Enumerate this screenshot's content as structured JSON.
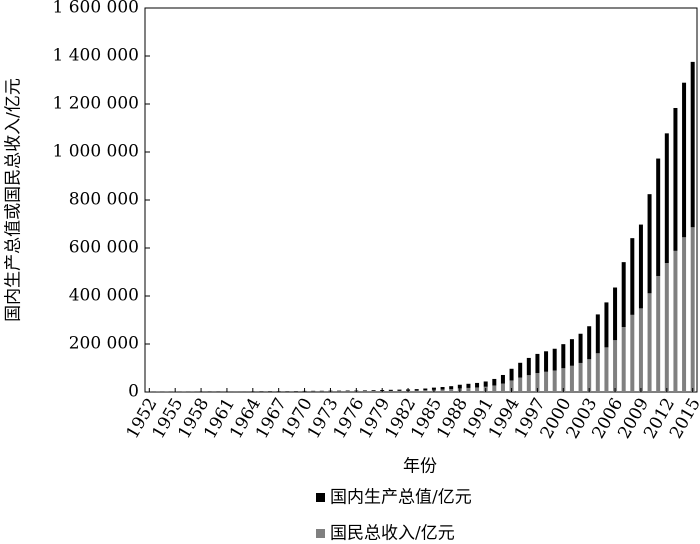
{
  "chart_data": {
    "type": "stacked_bar",
    "x_label": "年份",
    "y_label": "国内生产总值或国民总收入/亿元",
    "categories": [
      "1952",
      null,
      null,
      "1955",
      null,
      null,
      "1958",
      null,
      null,
      "1961",
      null,
      null,
      "1964",
      null,
      null,
      "1967",
      null,
      null,
      "1970",
      null,
      null,
      "1973",
      null,
      null,
      "1976",
      null,
      null,
      "1979",
      null,
      null,
      "1982",
      null,
      null,
      "1985",
      null,
      null,
      "1988",
      null,
      null,
      "1991",
      null,
      null,
      "1994",
      null,
      null,
      "1997",
      null,
      null,
      "2000",
      null,
      null,
      "2003",
      null,
      null,
      "2006",
      null,
      null,
      "2009",
      null,
      null,
      "2012",
      null,
      null,
      "2015"
    ],
    "series": [
      {
        "name": "国内生产总值/亿元",
        "color": "#000000",
        "values": [
          679,
          824,
          860,
          912,
          1031,
          1071,
          1312,
          1448,
          1470,
          1232,
          1162,
          1248,
          1470,
          1734,
          1889,
          1794,
          1744,
          1962,
          2280,
          2457,
          2552,
          2756,
          2828,
          3040,
          2989,
          3250,
          3679,
          4101,
          4588,
          4936,
          5373,
          6021,
          7279,
          9099,
          10376,
          12175,
          15180,
          17180,
          18873,
          22006,
          27195,
          35673,
          48638,
          61340,
          71814,
          79715,
          85196,
          90564,
          100280,
          110863,
          121717,
          137422,
          161840,
          187319,
          219439,
          270232,
          319516,
          349081,
          413030,
          489301,
          540367,
          595244,
          643974,
          689052
        ]
      },
      {
        "name": "国民总收入/亿元",
        "color": "#808080",
        "values": [
          679,
          824,
          860,
          912,
          1031,
          1071,
          1312,
          1448,
          1470,
          1232,
          1162,
          1248,
          1470,
          1734,
          1889,
          1794,
          1744,
          1962,
          2280,
          2457,
          2552,
          2756,
          2828,
          3040,
          2989,
          3250,
          3679,
          4101,
          4588,
          4891,
          5330,
          5986,
          7243,
          9123,
          10376,
          12059,
          15037,
          17000,
          18923,
          21826,
          27208,
          35260,
          48108,
          60357,
          70142,
          78973,
          84402,
          89677,
          99066,
          109276,
          121002,
          136565,
          161415,
          185999,
          215904,
          270844,
          321501,
          348498,
          411265,
          483393,
          537329,
          588141,
          644791,
          686450
        ]
      }
    ],
    "ylim": [
      0,
      1600000
    ],
    "yticks": [
      0,
      {
        "value": 200000,
        "label": "200 000"
      },
      {
        "value": 400000,
        "label": "400 000"
      },
      {
        "value": 600000,
        "label": "600 000"
      },
      {
        "value": 800000,
        "label": "800 000"
      },
      {
        "value": 1000000,
        "label": "1 000 000"
      },
      {
        "value": 1200000,
        "label": "1 200 000"
      },
      {
        "value": 1400000,
        "label": "1 400 000"
      },
      {
        "value": 1600000,
        "label": "1 600 000"
      }
    ],
    "grid": false,
    "legend": "bottom"
  }
}
